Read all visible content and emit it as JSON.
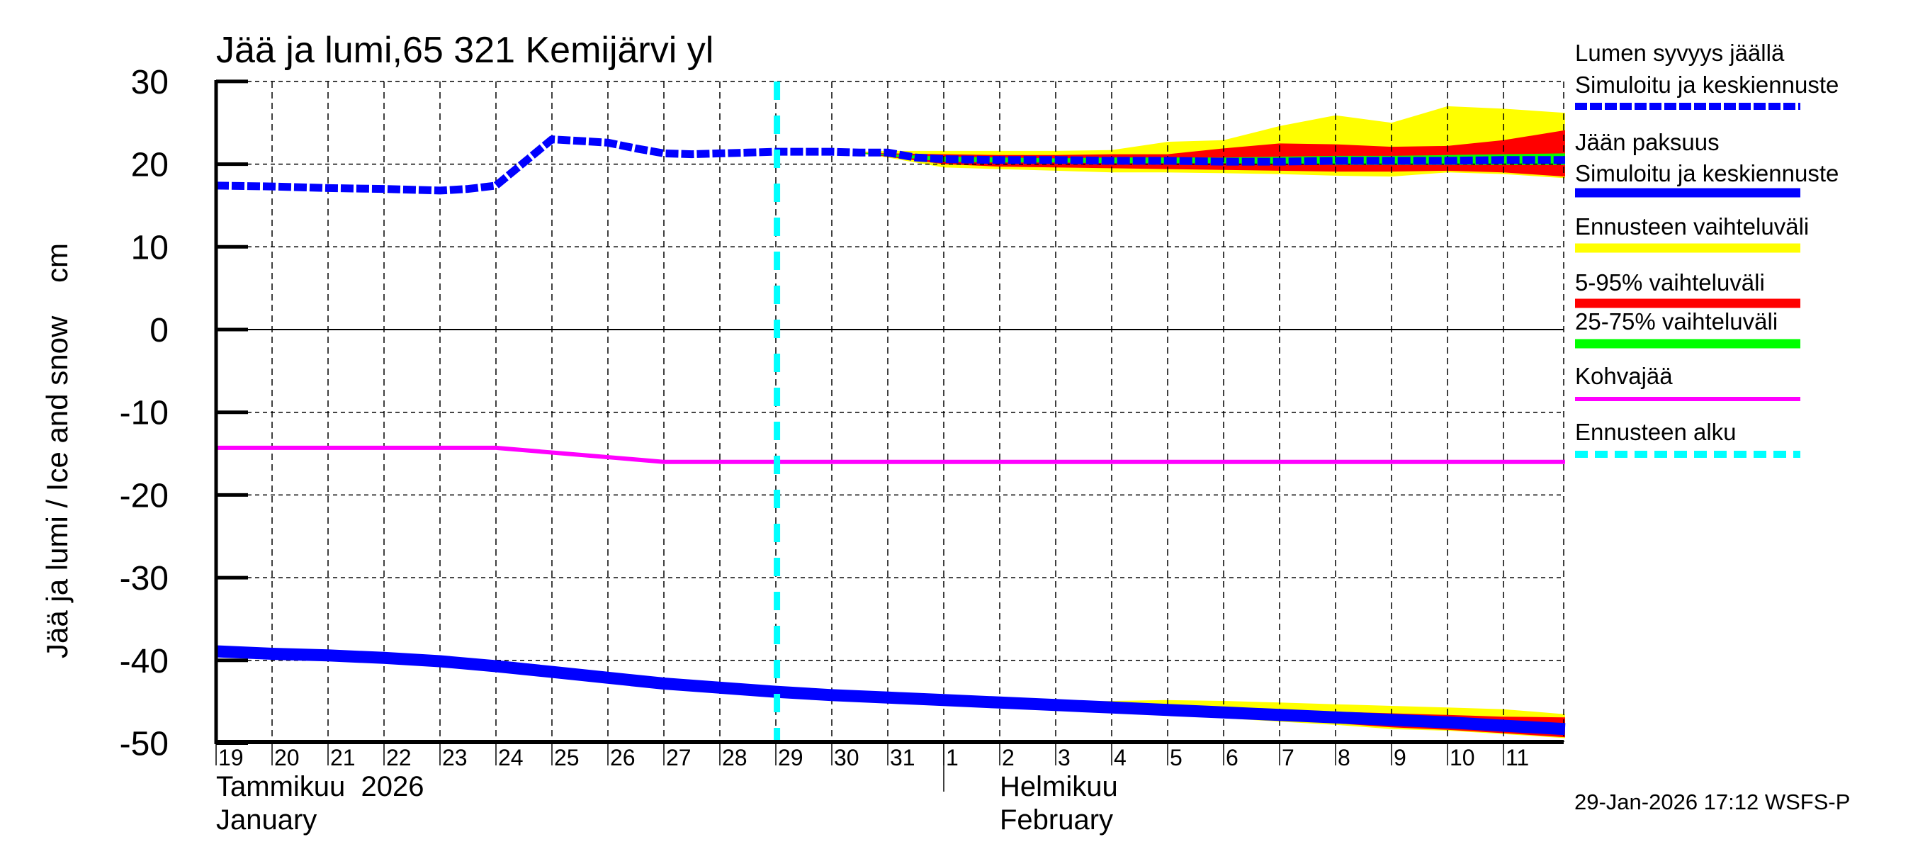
{
  "chart_data": {
    "type": "area",
    "title": "Jää ja lumi,65 321 Kemijärvi yl",
    "ylabel": "Jää ja lumi / Ice and snow    cm",
    "xlabel": "",
    "ylim": [
      -50,
      30
    ],
    "yticks": [
      30,
      20,
      10,
      0,
      -10,
      -20,
      -30,
      -40,
      -50
    ],
    "grid": true,
    "legend_position": "right",
    "x_day_start": 19,
    "x_day_end": 43.1,
    "xtick_days": [
      19,
      20,
      21,
      22,
      23,
      24,
      25,
      26,
      27,
      28,
      29,
      30,
      31,
      32,
      33,
      34,
      35,
      36,
      37,
      38,
      39,
      40,
      41,
      42
    ],
    "xtick_labels": [
      "19",
      "20",
      "21",
      "22",
      "23",
      "24",
      "25",
      "26",
      "27",
      "28",
      "29",
      "30",
      "31",
      "1",
      "2",
      "3",
      "4",
      "5",
      "6",
      "7",
      "8",
      "9",
      "10",
      "11"
    ],
    "month_labels": [
      {
        "day": 19,
        "line1": "Tammikuu  2026",
        "line2": "January"
      },
      {
        "day": 33,
        "line1": "Helmikuu",
        "line2": "February"
      }
    ],
    "month_separator_day": 32,
    "forecast_start_day": 29.02,
    "series": [
      {
        "name": "Lumen syvyys jäällä – Simuloitu ja keskiennuste",
        "style": "dashed-thick",
        "color": "#0000ff",
        "x": [
          19,
          20,
          21,
          22,
          23,
          23.5,
          24,
          24.5,
          25,
          25.5,
          26,
          26.5,
          27,
          27.5,
          28,
          28.5,
          29,
          29.5,
          30,
          30.5,
          31,
          31.5,
          32,
          33,
          34,
          35,
          36,
          37,
          38,
          39,
          40,
          41,
          42,
          43.1
        ],
        "y": [
          17.4,
          17.3,
          17.1,
          17.0,
          16.8,
          17.0,
          17.4,
          20.2,
          23.0,
          22.8,
          22.6,
          21.9,
          21.3,
          21.2,
          21.3,
          21.4,
          21.5,
          21.5,
          21.5,
          21.4,
          21.4,
          20.8,
          20.6,
          20.5,
          20.5,
          20.4,
          20.4,
          20.3,
          20.3,
          20.4,
          20.4,
          20.4,
          20.5,
          20.5
        ]
      },
      {
        "name": "Jään paksuus – Simuloitu ja keskiennuste",
        "style": "solid-thick",
        "color": "#0000ff",
        "x": [
          19,
          20,
          21,
          22,
          23,
          24,
          25,
          26,
          27,
          28,
          29,
          30,
          31,
          32,
          33,
          34,
          35,
          36,
          37,
          38,
          39,
          40,
          41,
          42,
          43.1
        ],
        "y": [
          -38.9,
          -39.2,
          -39.4,
          -39.7,
          -40.1,
          -40.7,
          -41.4,
          -42.1,
          -42.8,
          -43.3,
          -43.8,
          -44.2,
          -44.5,
          -44.8,
          -45.1,
          -45.4,
          -45.7,
          -46.0,
          -46.3,
          -46.6,
          -46.9,
          -47.2,
          -47.5,
          -47.9,
          -48.3
        ]
      },
      {
        "name": "Kohvajää",
        "style": "solid",
        "color": "#ff00ff",
        "x": [
          19,
          24,
          27,
          43.1
        ],
        "y": [
          -14.3,
          -14.3,
          -16.0,
          -16.0
        ]
      }
    ],
    "bands": [
      {
        "name": "Ennusteen vaihteluväli",
        "color": "#ffff00",
        "target": "snow",
        "x": [
          30.5,
          31,
          32,
          33,
          34,
          35,
          36,
          37,
          38,
          39,
          40,
          41,
          42,
          43.1
        ],
        "upper": [
          21.5,
          21.6,
          21.6,
          21.6,
          21.6,
          21.7,
          22.7,
          22.9,
          24.6,
          25.9,
          25.0,
          27.0,
          26.7,
          26.2
        ],
        "lower": [
          21.3,
          20.8,
          19.6,
          19.4,
          19.2,
          19.0,
          19.0,
          18.9,
          18.8,
          18.6,
          18.5,
          19.0,
          18.8,
          18.3
        ]
      },
      {
        "name": "5-95% vaihteluväli",
        "color": "#ff0000",
        "target": "snow",
        "x": [
          30.5,
          31,
          32,
          33,
          34,
          35,
          36,
          37,
          38,
          39,
          40,
          41,
          42,
          43.1
        ],
        "upper": [
          21.4,
          21.3,
          21.2,
          21.1,
          21.1,
          21.2,
          21.2,
          21.9,
          22.5,
          22.4,
          22.1,
          22.2,
          22.9,
          24.1
        ],
        "lower": [
          21.3,
          20.9,
          20.0,
          19.7,
          19.6,
          19.5,
          19.4,
          19.3,
          19.2,
          19.1,
          19.1,
          19.2,
          19.0,
          18.5
        ]
      },
      {
        "name": "25-75% vaihteluväli",
        "color": "#00ff00",
        "target": "snow",
        "x": [
          30.5,
          31,
          32,
          33,
          34,
          35,
          36,
          37,
          38,
          39,
          40,
          41,
          42,
          43.1
        ],
        "upper": [
          21.4,
          21.2,
          20.9,
          20.8,
          20.7,
          20.8,
          20.8,
          20.8,
          20.9,
          21.0,
          21.0,
          21.1,
          21.2,
          21.3
        ],
        "lower": [
          21.3,
          21.0,
          20.3,
          20.2,
          20.2,
          20.1,
          20.1,
          20.1,
          20.0,
          19.9,
          19.9,
          19.9,
          19.9,
          19.9
        ]
      },
      {
        "name": "Ennusteen vaihteluväli",
        "color": "#ffff00",
        "target": "ice",
        "x": [
          32,
          33,
          34,
          35,
          36,
          37,
          38,
          39,
          40,
          41,
          42,
          43.1
        ],
        "upper": [
          -44.6,
          -44.9,
          -45.1,
          -44.9,
          -44.8,
          -44.9,
          -45.1,
          -45.3,
          -45.5,
          -45.7,
          -45.9,
          -46.5
        ],
        "lower": [
          -45.0,
          -45.3,
          -45.7,
          -46.2,
          -46.6,
          -47.0,
          -47.4,
          -47.8,
          -48.3,
          -48.5,
          -48.9,
          -49.4
        ]
      },
      {
        "name": "5-95% vaihteluväli",
        "color": "#ff0000",
        "target": "ice",
        "x": [
          32,
          33,
          34,
          35,
          36,
          37,
          38,
          39,
          40,
          41,
          42,
          43.1
        ],
        "upper": [
          -44.7,
          -45.0,
          -45.3,
          -45.5,
          -45.6,
          -45.8,
          -46.0,
          -46.2,
          -46.4,
          -46.6,
          -46.8,
          -46.9
        ],
        "lower": [
          -44.9,
          -45.2,
          -45.6,
          -46.0,
          -46.4,
          -46.8,
          -47.2,
          -47.6,
          -48.1,
          -48.4,
          -48.8,
          -49.3
        ]
      }
    ]
  },
  "legend": {
    "items": [
      {
        "label1": "Lumen syvyys jäällä",
        "label2": "Simuloitu ja keskiennuste",
        "color": "#0000ff",
        "style": "dashed"
      },
      {
        "label1": "Jään paksuus",
        "label2": "Simuloitu ja keskiennuste",
        "color": "#0000ff",
        "style": "solid"
      },
      {
        "label1": "Ennusteen vaihteluväli",
        "color": "#ffff00",
        "style": "solid"
      },
      {
        "label1": "5-95% vaihteluväli",
        "color": "#ff0000",
        "style": "solid"
      },
      {
        "label1": "25-75% vaihteluväli",
        "color": "#00ff00",
        "style": "solid"
      },
      {
        "label1": "Kohvajää",
        "color": "#ff00ff",
        "style": "thin"
      },
      {
        "label1": "Ennusteen alku",
        "color": "#00ffff",
        "style": "dashed"
      }
    ]
  },
  "footer": {
    "timestamp": "29-Jan-2026 17:12 WSFS-P"
  },
  "colors": {
    "snow_line": "#0000ff",
    "ice_line": "#0000ff",
    "range": "#ffff00",
    "p5_95": "#ff0000",
    "p25_75": "#00ff00",
    "slush_ice": "#ff00ff",
    "forecast_start": "#00ffff"
  }
}
